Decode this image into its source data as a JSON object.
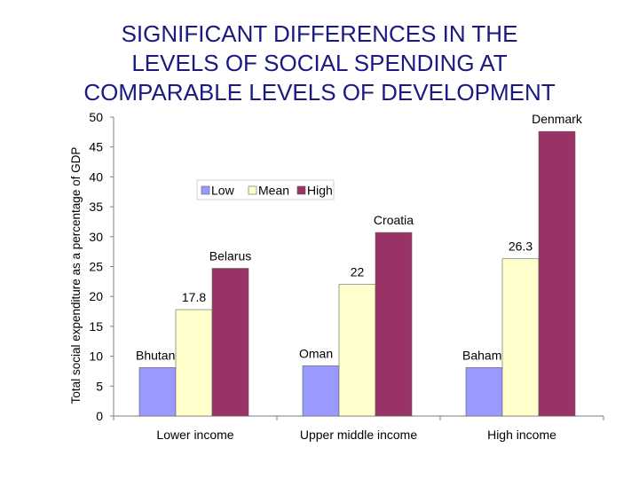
{
  "title_lines": [
    "SIGNIFICANT DIFFERENCES IN THE",
    "LEVELS OF SOCIAL SPENDING AT",
    "COMPARABLE LEVELS OF DEVELOPMENT"
  ],
  "chart_data": {
    "type": "bar",
    "title": "SIGNIFICANT DIFFERENCES IN THE LEVELS OF SOCIAL SPENDING AT COMPARABLE LEVELS OF DEVELOPMENT",
    "ylabel": "Total social expenditure as a percentage of GDP",
    "xlabel": "",
    "ylim": [
      0,
      50
    ],
    "yticks": [
      0,
      5,
      10,
      15,
      20,
      25,
      30,
      35,
      40,
      45,
      50
    ],
    "grid": false,
    "legend_position": "upper-left",
    "categories": [
      "Lower income",
      "Upper middle income",
      "High income"
    ],
    "series": [
      {
        "name": "Low",
        "color": "#9999ff",
        "values": [
          8.1,
          8.4,
          8.1
        ],
        "labels": [
          "Bhutan",
          "Oman",
          "Bahamas"
        ]
      },
      {
        "name": "Mean",
        "color": "#ffffcc",
        "values": [
          17.8,
          22,
          26.3
        ],
        "labels": [
          "17.8",
          "22",
          "26.3"
        ]
      },
      {
        "name": "High",
        "color": "#993366",
        "values": [
          24.7,
          30.7,
          47.6
        ],
        "labels": [
          "Belarus",
          "Croatia",
          "Denmark"
        ]
      }
    ]
  }
}
